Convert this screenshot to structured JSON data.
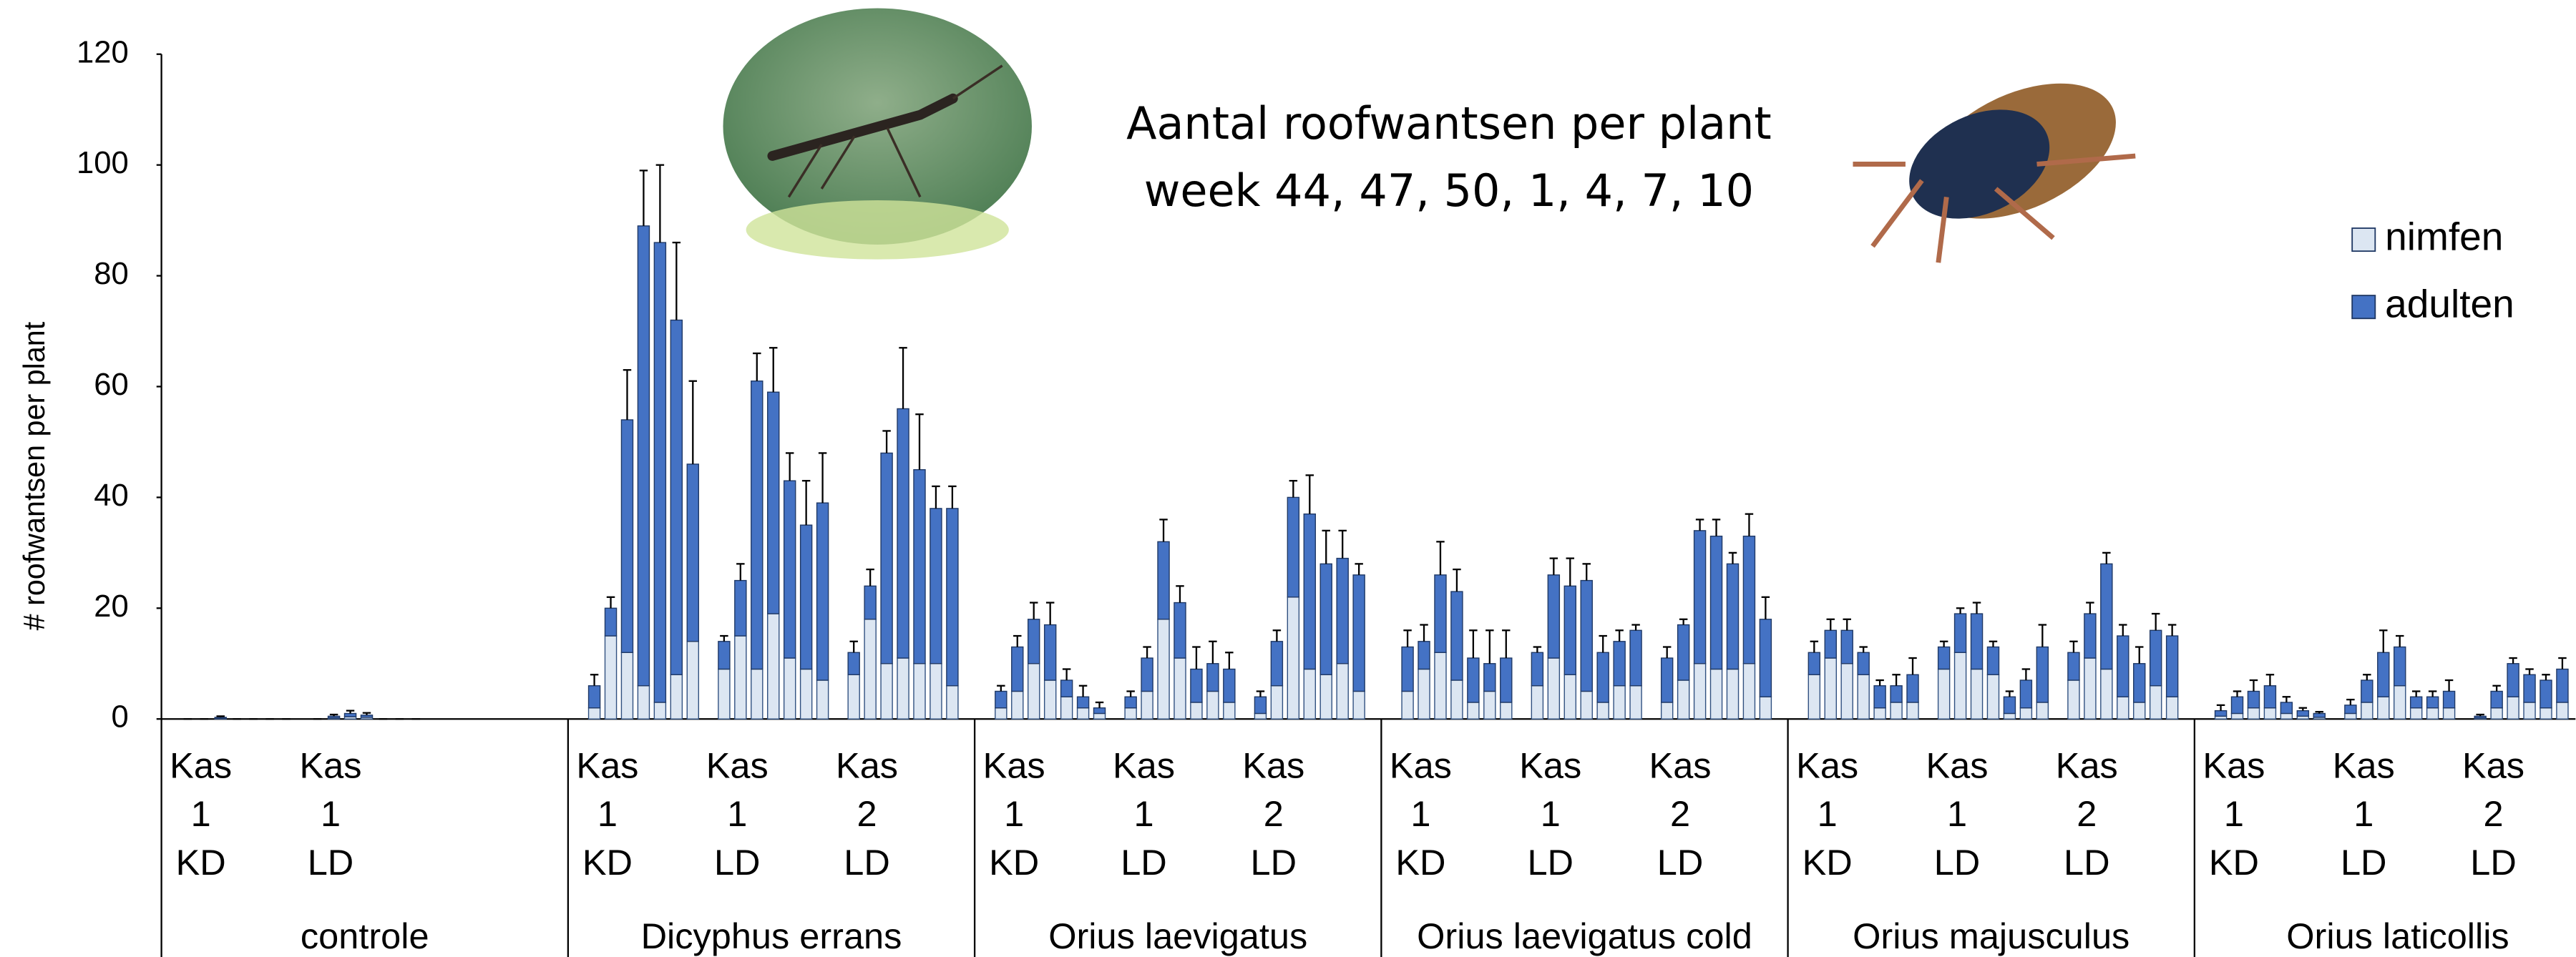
{
  "chart_data": {
    "type": "grouped-stacked-bar",
    "title": [
      "Aantal roofwantsen per plant",
      "week 44, 47, 50, 1, 4, 7, 10"
    ],
    "y_label": "# roofwantsen per plant",
    "ylim": [
      0,
      120
    ],
    "yticks": [
      0,
      20,
      40,
      60,
      80,
      100,
      120
    ],
    "grid": false,
    "legend": "right",
    "series": [
      {
        "name": "nimfen",
        "color": "#dce6f2"
      },
      {
        "name": "adulten",
        "color": "#4472c4"
      }
    ],
    "groups": [
      {
        "name": "controle",
        "subgroups": [
          {
            "label": [
              "Kas",
              "1",
              "KD"
            ],
            "values": [
              [
                0,
                0,
                0.1,
                0,
                0,
                0,
                0
              ],
              [
                0,
                0,
                0.2,
                0,
                0,
                0,
                0
              ]
            ],
            "errors": [
              0,
              0,
              0.2,
              0,
              0,
              0,
              0
            ]
          },
          {
            "label": [
              "Kas",
              "1",
              "LD"
            ],
            "values": [
              [
                0,
                0.2,
                0.4,
                0.3,
                0,
                0,
                0
              ],
              [
                0,
                0.3,
                0.6,
                0.4,
                0,
                0,
                0
              ]
            ],
            "errors": [
              0,
              0.3,
              0.5,
              0.4,
              0,
              0,
              0
            ]
          }
        ]
      },
      {
        "name": "Dicyphus errans",
        "subgroups": [
          {
            "label": [
              "Kas",
              "1",
              "KD"
            ],
            "values": [
              [
                2,
                15,
                12,
                6,
                3,
                8,
                14
              ],
              [
                4,
                5,
                42,
                83,
                83,
                64,
                32
              ]
            ],
            "errors": [
              2,
              2,
              9,
              10,
              14,
              14,
              15
            ]
          },
          {
            "label": [
              "Kas",
              "1",
              "LD"
            ],
            "values": [
              [
                9,
                15,
                9,
                19,
                11,
                9,
                7
              ],
              [
                5,
                10,
                52,
                40,
                32,
                26,
                32
              ]
            ],
            "errors": [
              1,
              3,
              5,
              8,
              5,
              8,
              9
            ]
          },
          {
            "label": [
              "Kas",
              "2",
              "LD"
            ],
            "values": [
              [
                8,
                18,
                10,
                11,
                10,
                10,
                6
              ],
              [
                4,
                6,
                38,
                45,
                35,
                28,
                32
              ]
            ],
            "errors": [
              2,
              3,
              4,
              11,
              10,
              4,
              4
            ]
          }
        ]
      },
      {
        "name": "Orius laevigatus",
        "subgroups": [
          {
            "label": [
              "Kas",
              "1",
              "KD"
            ],
            "values": [
              [
                2,
                5,
                10,
                7,
                4,
                2,
                1
              ],
              [
                3,
                8,
                8,
                10,
                3,
                2,
                1
              ]
            ],
            "errors": [
              1,
              2,
              3,
              4,
              2,
              2,
              1
            ]
          },
          {
            "label": [
              "Kas",
              "1",
              "LD"
            ],
            "values": [
              [
                2,
                5,
                18,
                11,
                3,
                5,
                3
              ],
              [
                2,
                6,
                14,
                10,
                6,
                5,
                6
              ]
            ],
            "errors": [
              1,
              2,
              4,
              3,
              4,
              4,
              3
            ]
          },
          {
            "label": [
              "Kas",
              "2",
              "LD"
            ],
            "values": [
              [
                1,
                6,
                22,
                9,
                8,
                10,
                5
              ],
              [
                3,
                8,
                18,
                28,
                20,
                19,
                21
              ]
            ],
            "errors": [
              1,
              2,
              3,
              7,
              6,
              5,
              2
            ]
          }
        ]
      },
      {
        "name": "Orius laevigatus cold",
        "subgroups": [
          {
            "label": [
              "Kas",
              "1",
              "KD"
            ],
            "values": [
              [
                5,
                9,
                12,
                7,
                3,
                5,
                3
              ],
              [
                8,
                5,
                14,
                16,
                8,
                5,
                8
              ]
            ],
            "errors": [
              3,
              3,
              6,
              4,
              5,
              6,
              5
            ]
          },
          {
            "label": [
              "Kas",
              "1",
              "LD"
            ],
            "values": [
              [
                6,
                11,
                8,
                5,
                3,
                6,
                6
              ],
              [
                6,
                15,
                16,
                20,
                9,
                8,
                10
              ]
            ],
            "errors": [
              1,
              3,
              5,
              3,
              3,
              2,
              1
            ]
          },
          {
            "label": [
              "Kas",
              "2",
              "LD"
            ],
            "values": [
              [
                3,
                7,
                10,
                9,
                9,
                10,
                4
              ],
              [
                8,
                10,
                24,
                24,
                19,
                23,
                14
              ]
            ],
            "errors": [
              2,
              1,
              2,
              3,
              2,
              4,
              4
            ]
          }
        ]
      },
      {
        "name": "Orius majusculus",
        "subgroups": [
          {
            "label": [
              "Kas",
              "1",
              "KD"
            ],
            "values": [
              [
                8,
                11,
                10,
                8,
                2,
                3,
                3
              ],
              [
                4,
                5,
                6,
                4,
                4,
                3,
                5
              ]
            ],
            "errors": [
              2,
              2,
              2,
              1,
              1,
              2,
              3
            ]
          },
          {
            "label": [
              "Kas",
              "1",
              "LD"
            ],
            "values": [
              [
                9,
                12,
                9,
                8,
                1,
                2,
                3
              ],
              [
                4,
                7,
                10,
                5,
                3,
                5,
                10
              ]
            ],
            "errors": [
              1,
              1,
              2,
              1,
              1,
              2,
              4
            ]
          },
          {
            "label": [
              "Kas",
              "2",
              "LD"
            ],
            "values": [
              [
                7,
                11,
                9,
                4,
                3,
                6,
                4
              ],
              [
                5,
                8,
                19,
                11,
                7,
                10,
                11
              ]
            ],
            "errors": [
              2,
              2,
              2,
              2,
              3,
              3,
              2
            ]
          }
        ]
      },
      {
        "name": "Orius laticollis",
        "subgroups": [
          {
            "label": [
              "Kas",
              "1",
              "KD"
            ],
            "values": [
              [
                0.5,
                1,
                2,
                2,
                1,
                0.5,
                0.3
              ],
              [
                1,
                3,
                3,
                4,
                2,
                1,
                0.7
              ]
            ],
            "errors": [
              1,
              1,
              2,
              2,
              1,
              0.5,
              0.3
            ]
          },
          {
            "label": [
              "Kas",
              "1",
              "LD"
            ],
            "values": [
              [
                1,
                3,
                4,
                6,
                2,
                2,
                2
              ],
              [
                1.5,
                4,
                8,
                7,
                2,
                2,
                3
              ]
            ],
            "errors": [
              1,
              1,
              4,
              2,
              1,
              1,
              2
            ]
          },
          {
            "label": [
              "Kas",
              "2",
              "LD"
            ],
            "values": [
              [
                0.2,
                2,
                4,
                3,
                2,
                3
              ],
              [
                0.3,
                3,
                6,
                5,
                5,
                6
              ]
            ],
            "errors": [
              0.3,
              1,
              1,
              1,
              1,
              2
            ]
          }
        ]
      }
    ]
  }
}
